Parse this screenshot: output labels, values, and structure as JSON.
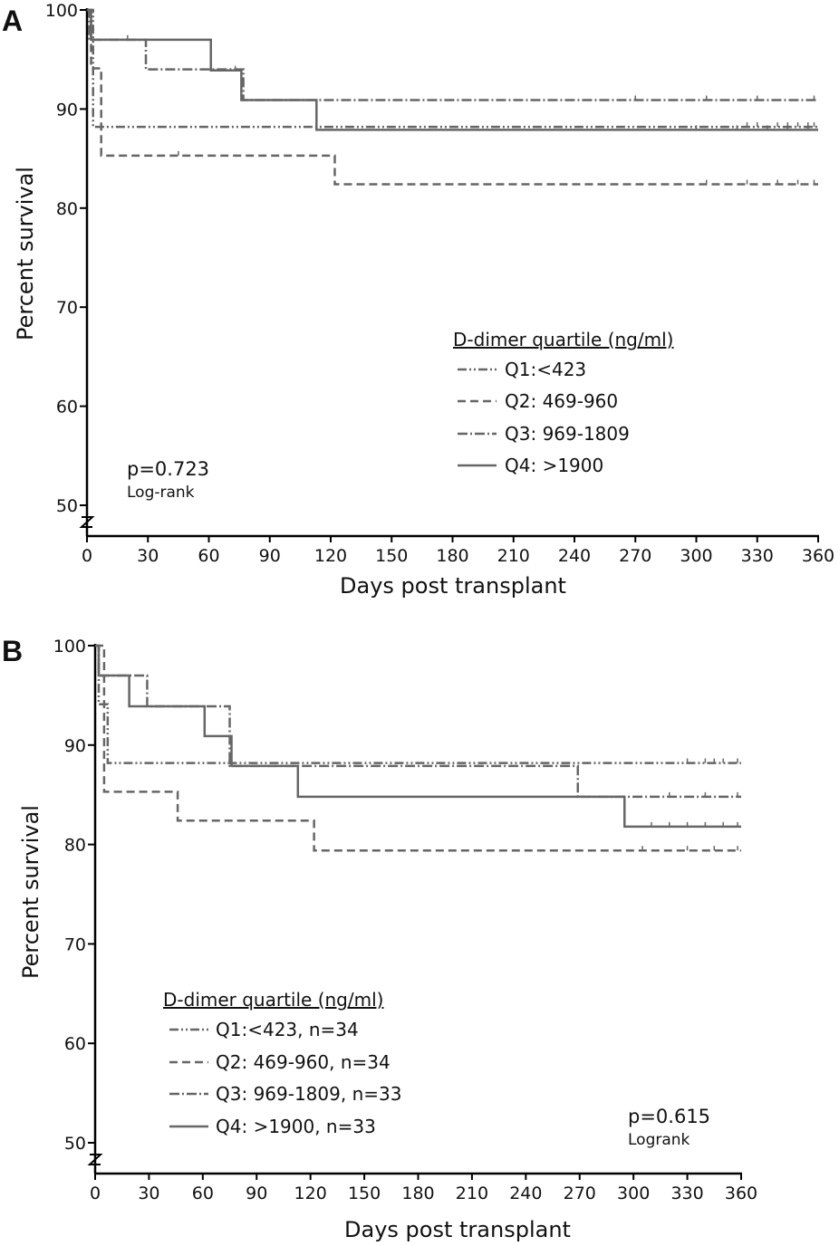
{
  "chart_data": [
    {
      "type": "line",
      "panel_label": "A",
      "xlabel": "Days post transplant",
      "ylabel": "Percent survival",
      "xlim": [
        0,
        360
      ],
      "ylim": [
        50,
        100
      ],
      "xticks": [
        "0",
        "30",
        "60",
        "90",
        "120",
        "150",
        "180",
        "210",
        "240",
        "270",
        "300",
        "330",
        "360"
      ],
      "yticks": [
        "100",
        "90",
        "80",
        "70",
        "60",
        "50"
      ],
      "legend_title": "D-dimer quartile (ng/ml)",
      "legend_position": "center-right",
      "annotation": {
        "p": "p=0.723",
        "test": "Log-rank"
      },
      "series": [
        {
          "name": "Q1:<423",
          "style": "dash-dot-dot",
          "steps": [
            [
              0,
              100
            ],
            [
              3,
              88.2
            ]
          ],
          "end": 88.2,
          "censor_days": [
            325,
            330,
            340,
            345,
            350,
            355,
            358
          ]
        },
        {
          "name": "Q2: 469-960",
          "style": "dashed",
          "steps": [
            [
              0,
              100
            ],
            [
              2,
              94.1
            ],
            [
              7,
              85.3
            ],
            [
              122,
              82.4
            ]
          ],
          "end": 82.4,
          "censor_days": [
            45,
            305,
            325,
            340,
            350,
            358
          ]
        },
        {
          "name": "Q3: 969-1809",
          "style": "dash-dot",
          "steps": [
            [
              0,
              100
            ],
            [
              1,
              97
            ],
            [
              29,
              94
            ],
            [
              77,
              90.9
            ]
          ],
          "end": 90.9,
          "censor_days": [
            270,
            305,
            330,
            358
          ]
        },
        {
          "name": "Q4: >1900",
          "style": "solid",
          "steps": [
            [
              0,
              100
            ],
            [
              2,
              97
            ],
            [
              61,
              93.9
            ],
            [
              76,
              90.9
            ],
            [
              113,
              87.9
            ]
          ],
          "end": 87.9,
          "censor_days": [
            20,
            73,
            300,
            320,
            335,
            345,
            355
          ]
        }
      ]
    },
    {
      "type": "line",
      "panel_label": "B",
      "xlabel": "Days post transplant",
      "ylabel": "Percent survival",
      "xlim": [
        0,
        360
      ],
      "ylim": [
        50,
        100
      ],
      "xticks": [
        "0",
        "30",
        "60",
        "90",
        "120",
        "150",
        "180",
        "210",
        "240",
        "270",
        "300",
        "330",
        "360"
      ],
      "yticks": [
        "100",
        "90",
        "80",
        "70",
        "60",
        "50"
      ],
      "legend_title": "D-dimer quartile (ng/ml)",
      "legend_position": "bottom-left",
      "annotation": {
        "p": "p=0.615",
        "test": "Logrank"
      },
      "series": [
        {
          "name": "Q1:<423, n=34",
          "style": "dash-dot-dot",
          "steps": [
            [
              0,
              100
            ],
            [
              2,
              94.1
            ],
            [
              7,
              88.2
            ]
          ],
          "end": 88.2,
          "censor_days": [
            330,
            340,
            345,
            350,
            358
          ]
        },
        {
          "name": "Q2: 469-960, n=34",
          "style": "dashed",
          "steps": [
            [
              0,
              100
            ],
            [
              5,
              85.3
            ],
            [
              46,
              82.4
            ],
            [
              122,
              79.4
            ]
          ],
          "end": 79.4,
          "censor_days": [
            305,
            330,
            345,
            358
          ]
        },
        {
          "name": "Q3: 969-1809, n=33",
          "style": "dash-dot",
          "steps": [
            [
              0,
              100
            ],
            [
              2,
              97
            ],
            [
              29,
              93.9
            ],
            [
              75,
              87.9
            ],
            [
              269,
              84.8
            ]
          ],
          "end": 84.8,
          "censor_days": [
            320,
            340,
            358
          ]
        },
        {
          "name": "Q4: >1900, n=33",
          "style": "solid",
          "steps": [
            [
              0,
              100
            ],
            [
              2,
              97
            ],
            [
              19,
              93.9
            ],
            [
              61,
              90.9
            ],
            [
              76,
              87.9
            ],
            [
              113,
              84.8
            ],
            [
              295,
              81.8
            ]
          ],
          "end": 81.8,
          "censor_days": [
            310,
            320,
            330,
            340,
            350,
            358
          ]
        }
      ]
    }
  ]
}
